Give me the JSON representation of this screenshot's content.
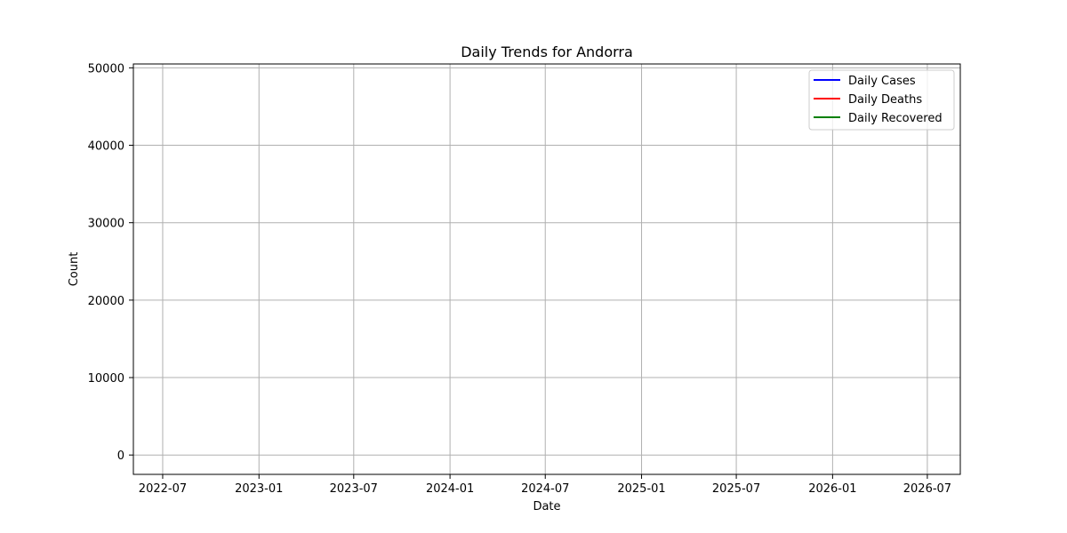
{
  "chart_data": {
    "type": "line",
    "title": "Daily Trends for Andorra",
    "xlabel": "Date",
    "ylabel": "Count",
    "x_ticks": [
      "2022-07",
      "2023-01",
      "2023-07",
      "2024-01",
      "2024-07",
      "2025-01",
      "2025-07",
      "2026-01",
      "2026-07"
    ],
    "x_tick_dates": [
      "2022-07-01",
      "2023-01-01",
      "2023-07-01",
      "2024-01-01",
      "2024-07-01",
      "2025-01-01",
      "2025-07-01",
      "2026-01-01",
      "2026-07-01"
    ],
    "xlim": [
      "2022-05-06",
      "2026-09-02"
    ],
    "y_ticks": [
      0,
      10000,
      20000,
      30000,
      40000,
      50000
    ],
    "ylim": [
      -2500,
      50500
    ],
    "grid": true,
    "legend_position": "top-right",
    "series": [
      {
        "name": "Daily Cases",
        "color": "#0000ff",
        "values": []
      },
      {
        "name": "Daily Deaths",
        "color": "#ff0000",
        "values": []
      },
      {
        "name": "Daily Recovered",
        "color": "#008000",
        "values": []
      }
    ]
  }
}
